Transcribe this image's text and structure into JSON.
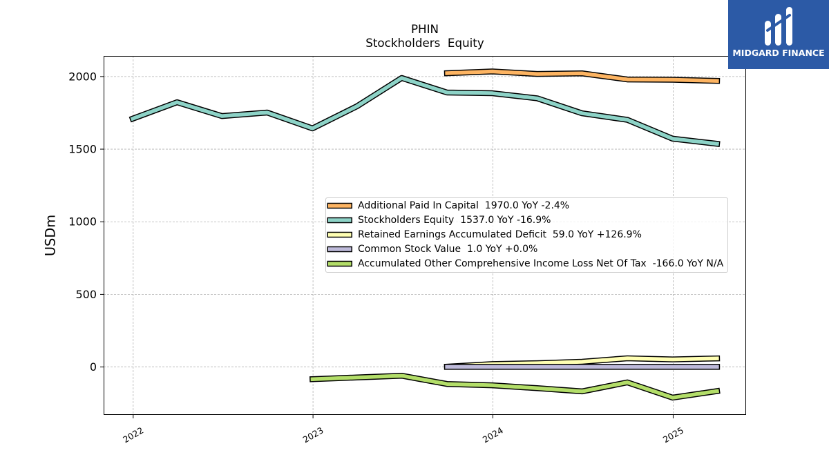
{
  "logo": {
    "text": "MIDGARD FINANCE",
    "icon": "midgard-logo-icon",
    "background": "#2c5aa6",
    "foreground": "#ffffff"
  },
  "chart_data": {
    "type": "line",
    "title": "PHIN",
    "subtitle": "Stockholders  Equity",
    "ylabel": "USDm",
    "xlim": [
      "2021-11-02",
      "2025-05-29"
    ],
    "ylim": [
      -330,
      2142
    ],
    "x_ticks": [
      {
        "label": "2022",
        "x": "2022-01-01"
      },
      {
        "label": "2023",
        "x": "2023-01-01"
      },
      {
        "label": "2024",
        "x": "2024-01-01"
      },
      {
        "label": "2025",
        "x": "2025-01-01"
      }
    ],
    "y_ticks": [
      0,
      500,
      1000,
      1500,
      2000
    ],
    "grid": true,
    "legend_placement": "center right",
    "line_outline_color": "#000000",
    "series": [
      {
        "name": "Additional Paid In Capital  1970.0 YoY -2.4%",
        "color": "#fdb462",
        "x": [
          "2023-09-30",
          "2023-12-31",
          "2024-03-31",
          "2024-06-30",
          "2024-09-30",
          "2024-12-31",
          "2025-03-31"
        ],
        "y": [
          2023,
          2035,
          2018,
          2022,
          1980,
          1978,
          1970
        ]
      },
      {
        "name": "Stockholders Equity  1537.0 YoY -16.9%",
        "color": "#8dd3c7",
        "x": [
          "2021-12-31",
          "2022-03-31",
          "2022-06-30",
          "2022-09-30",
          "2022-12-31",
          "2023-03-31",
          "2023-06-30",
          "2023-09-30",
          "2023-12-31",
          "2024-03-31",
          "2024-06-30",
          "2024-09-30",
          "2024-12-31",
          "2025-03-31"
        ],
        "y": [
          1710,
          1823,
          1728,
          1752,
          1643,
          1795,
          1990,
          1890,
          1885,
          1850,
          1747,
          1702,
          1572,
          1537
        ]
      },
      {
        "name": "Retained Earnings Accumulated Deficit  59.0 YoY +126.9%",
        "color": "#ffffb3",
        "x": [
          "2023-09-30",
          "2023-12-31",
          "2024-03-31",
          "2024-06-30",
          "2024-09-30",
          "2024-12-31",
          "2025-03-31"
        ],
        "y": [
          2,
          20,
          26,
          36,
          60,
          52,
          59
        ]
      },
      {
        "name": "Common Stock Value  1.0 YoY +0.0%",
        "color": "#bebada",
        "x": [
          "2023-09-30",
          "2023-12-31",
          "2024-03-31",
          "2024-06-30",
          "2024-09-30",
          "2024-12-31",
          "2025-03-31"
        ],
        "y": [
          1,
          1,
          1,
          1,
          1,
          1,
          1
        ]
      },
      {
        "name": "Accumulated Other Comprehensive Income Loss Net Of Tax  -166.0 YoY N/A",
        "color": "#b3de69",
        "x": [
          "2022-12-31",
          "2023-03-31",
          "2023-06-30",
          "2023-09-30",
          "2023-12-31",
          "2024-03-31",
          "2024-06-30",
          "2024-09-30",
          "2024-12-31",
          "2025-03-31"
        ],
        "y": [
          -84,
          -72,
          -60,
          -117,
          -126,
          -146,
          -168,
          -106,
          -211,
          -166
        ]
      }
    ]
  }
}
